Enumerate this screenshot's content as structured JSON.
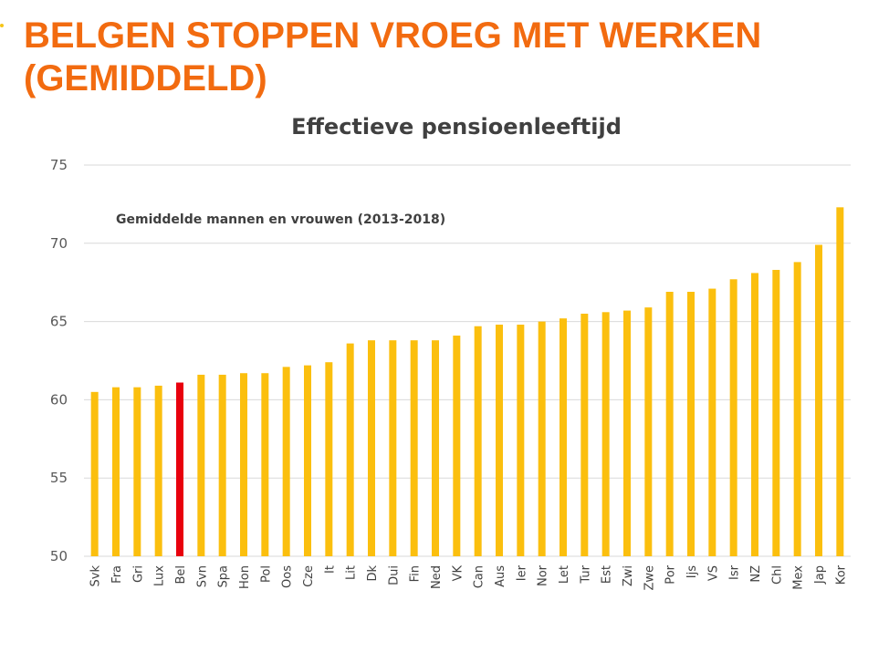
{
  "slide": {
    "title_line1": "BELGEN STOPPEN VROEG MET WERKEN",
    "title_line2": "(GEMIDDELD)"
  },
  "colors": {
    "title": "#f26b10",
    "bar": "#fbbf0e",
    "highlight": "#e8000d",
    "grid": "#d9d9d9"
  },
  "chart_data": {
    "type": "bar",
    "title": "Effectieve pensioenleeftijd",
    "subtitle": "Gemiddelde mannen en vrouwen (2013-2018)",
    "categories": [
      "Svk",
      "Fra",
      "Gri",
      "Lux",
      "Bel",
      "Svn",
      "Spa",
      "Hon",
      "Pol",
      "Oos",
      "Cze",
      "It",
      "Lit",
      "Dk",
      "Dui",
      "Fin",
      "Ned",
      "VK",
      "Can",
      "Aus",
      "Ier",
      "Nor",
      "Let",
      "Tur",
      "Est",
      "Zwi",
      "Zwe",
      "Por",
      "Ijs",
      "VS",
      "Isr",
      "NZ",
      "Chl",
      "Mex",
      "Jap",
      "Kor"
    ],
    "values": [
      60.5,
      60.8,
      60.8,
      60.9,
      61.1,
      61.6,
      61.6,
      61.7,
      61.7,
      62.1,
      62.2,
      62.4,
      63.6,
      63.8,
      63.8,
      63.8,
      63.8,
      64.1,
      64.7,
      64.8,
      64.8,
      65.0,
      65.2,
      65.5,
      65.6,
      65.7,
      65.9,
      66.9,
      66.9,
      67.1,
      67.7,
      68.1,
      68.3,
      68.8,
      69.9,
      72.3
    ],
    "highlight": "Bel",
    "ylim": [
      50,
      75
    ],
    "yticks": [
      50,
      55,
      60,
      65,
      70,
      75
    ],
    "grid": true,
    "legend": "none"
  }
}
